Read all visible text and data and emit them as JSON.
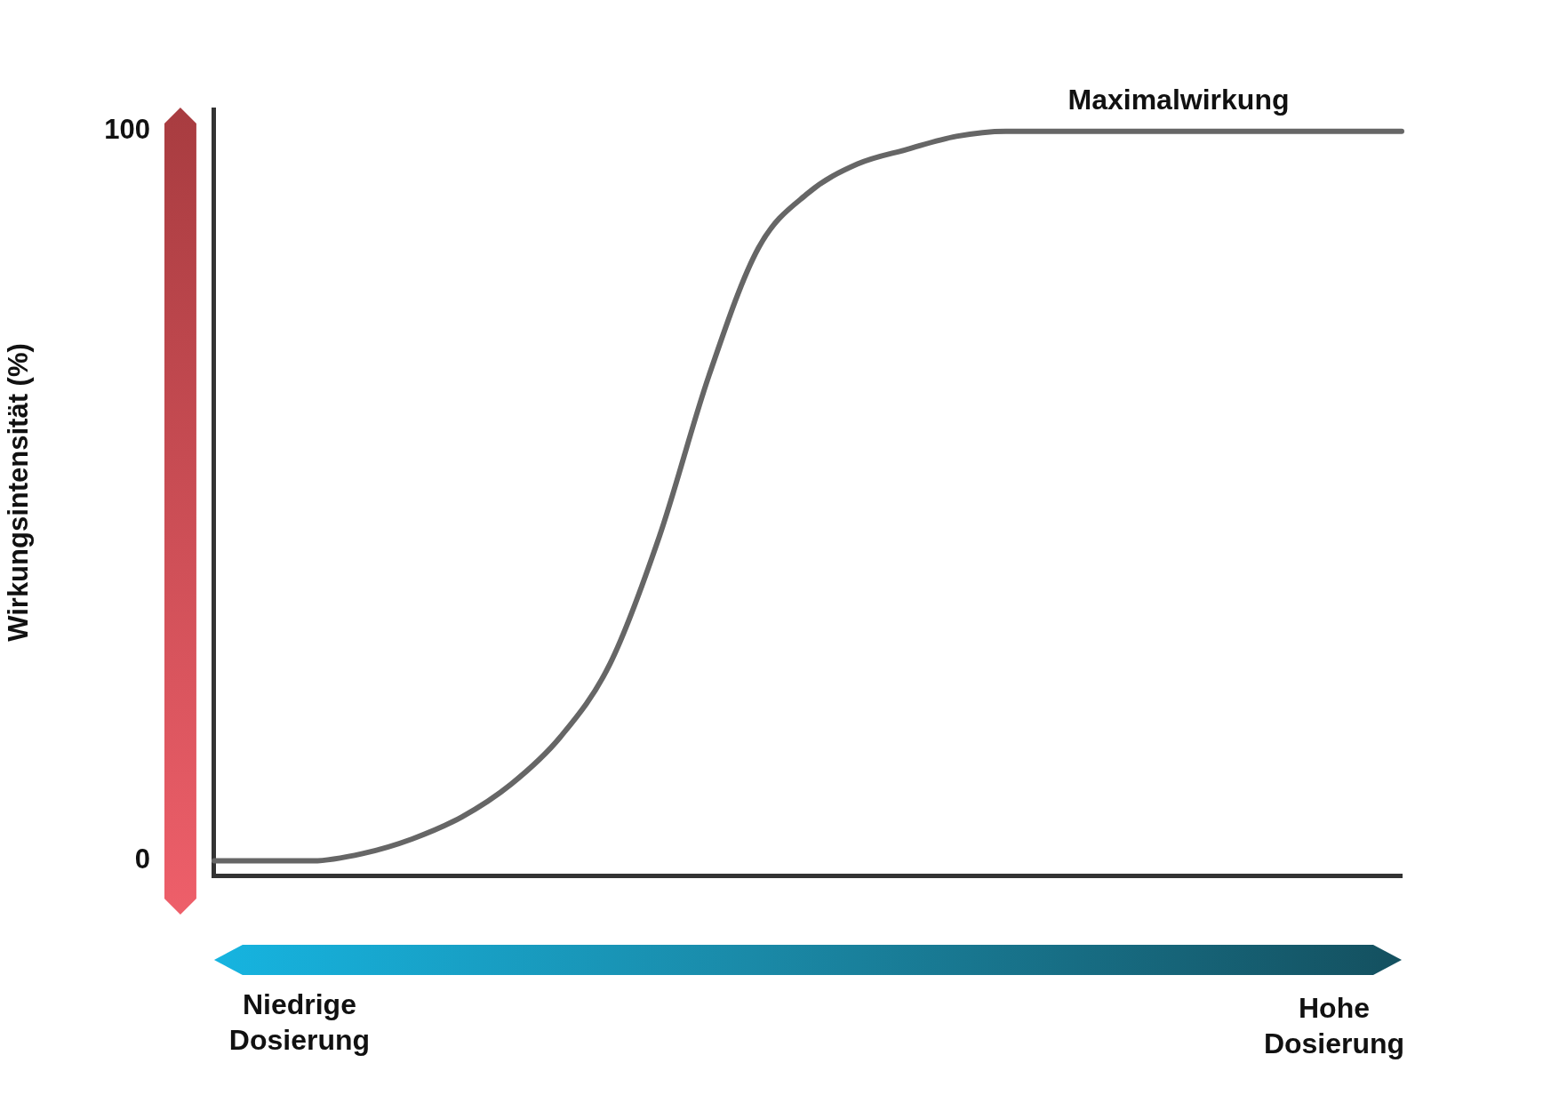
{
  "chart_data": {
    "type": "line",
    "ylabel": "Wirkungsintensität (%)",
    "categories": [
      null,
      null,
      null,
      null,
      null,
      null,
      null,
      null,
      null,
      null,
      null,
      null,
      null,
      null,
      null,
      null,
      null,
      null,
      null,
      null,
      null,
      null,
      null,
      null,
      null
    ],
    "series": [
      {
        "color": "#666666",
        "values": [
          0,
          0,
          0,
          1,
          3,
          6,
          10.5,
          17,
          27,
          44.5,
          66.5,
          84,
          91.5,
          95.5,
          97.5,
          99.3,
          100,
          100,
          100,
          100,
          100,
          100,
          100,
          100,
          100
        ]
      }
    ],
    "ylim": [
      -2,
      103
    ],
    "yticks": [
      0,
      100
    ],
    "marker": "none",
    "annotations": [
      "Maximalwirkung",
      "Niedrige Dosierung",
      "Hohe Dosierung"
    ]
  }
}
